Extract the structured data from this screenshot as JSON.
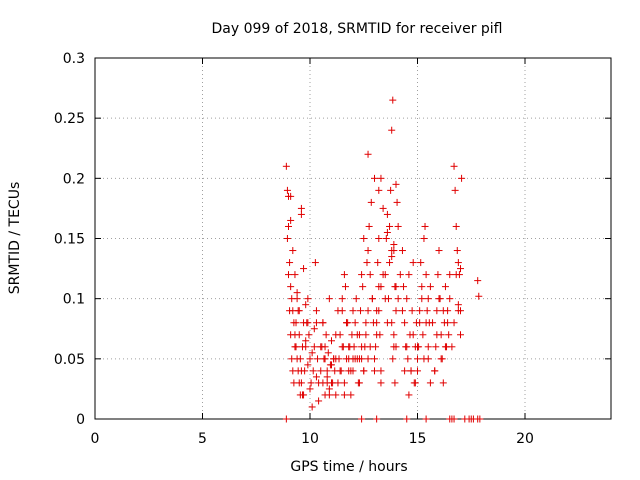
{
  "chart_data": {
    "type": "scatter",
    "title": "Day 099 of 2018, SRMTID for receiver pifl",
    "xlabel": "GPS time / hours",
    "ylabel": "SRMTID / TECUs",
    "xlim": [
      0,
      24
    ],
    "ylim": [
      0,
      0.3
    ],
    "x_ticks": [
      0,
      5,
      10,
      15,
      20
    ],
    "x_tick_labels": [
      "0",
      "5",
      "10",
      "15",
      "20"
    ],
    "y_ticks": [
      0,
      0.05,
      0.1,
      0.15,
      0.2,
      0.25,
      0.3
    ],
    "y_tick_labels": [
      "0",
      "0.05",
      "0.1",
      "0.15",
      "0.2",
      "0.25",
      "0.3"
    ],
    "grid": true,
    "marker": "+",
    "color": "#e00000",
    "series": [
      {
        "x": [
          8.9,
          8.95,
          9.0,
          9.05,
          9.1,
          9.15,
          9.2,
          9.25,
          9.3,
          9.35,
          9.4,
          9.45,
          9.5,
          9.55,
          9.6,
          9.65,
          9.7,
          8.95,
          9.0,
          9.05,
          9.1,
          9.15,
          9.2,
          9.25,
          9.3,
          9.35,
          9.4,
          9.45,
          9.5,
          9.55,
          9.6,
          9.65,
          9.0,
          9.1,
          9.2,
          9.3,
          9.4,
          9.5,
          9.6,
          9.7,
          9.8,
          9.9,
          9.7,
          9.75,
          9.8,
          9.85,
          9.9,
          9.95,
          10.0,
          10.05,
          10.1,
          10.15,
          10.2,
          10.25,
          10.3,
          10.35,
          10.4,
          9.8,
          9.9,
          10.0,
          10.1,
          10.2,
          10.3,
          10.4,
          10.5,
          10.6,
          10.7,
          10.8,
          10.9,
          11.0,
          10.5,
          10.55,
          10.6,
          10.65,
          10.7,
          10.75,
          10.8,
          10.85,
          10.9,
          10.95,
          11.0,
          11.05,
          11.1,
          11.15,
          11.2,
          10.6,
          10.7,
          10.8,
          10.9,
          11.0,
          11.1,
          11.2,
          11.3,
          11.4,
          11.5,
          11.6,
          11.7,
          11.8,
          11.3,
          11.35,
          11.4,
          11.45,
          11.5,
          11.55,
          11.6,
          11.65,
          11.7,
          11.75,
          11.8,
          11.85,
          11.9,
          11.95,
          12.0,
          11.5,
          11.6,
          11.7,
          11.8,
          11.9,
          12.0,
          12.1,
          12.2,
          12.3,
          12.4,
          12.5,
          12.0,
          12.05,
          12.1,
          12.15,
          12.2,
          12.25,
          12.3,
          12.35,
          12.4,
          12.45,
          12.5,
          12.55,
          12.6,
          12.65,
          12.7,
          12.3,
          12.4,
          12.5,
          12.6,
          12.7,
          12.8,
          12.9,
          13.0,
          13.1,
          13.2,
          13.3,
          12.7,
          12.75,
          12.8,
          12.85,
          12.9,
          12.95,
          13.0,
          13.05,
          13.1,
          13.15,
          13.2,
          13.25,
          13.3,
          13.0,
          13.1,
          13.2,
          13.3,
          13.4,
          13.5,
          13.6,
          13.7,
          13.8,
          13.9,
          14.0,
          13.5,
          13.55,
          13.6,
          13.65,
          13.7,
          13.75,
          13.8,
          13.85,
          13.9,
          13.95,
          14.0,
          14.05,
          14.1,
          13.8,
          13.85,
          13.9,
          13.95,
          14.0,
          14.1,
          14.2,
          14.3,
          14.4,
          14.5,
          14.3,
          14.35,
          14.4,
          14.45,
          14.5,
          14.55,
          14.6,
          14.65,
          14.7,
          14.75,
          14.8,
          14.85,
          14.9,
          14.95,
          15.0,
          14.6,
          14.7,
          14.8,
          14.9,
          15.0,
          15.1,
          15.2,
          15.3,
          15.4,
          15.5,
          15.0,
          15.05,
          15.1,
          15.15,
          15.2,
          15.25,
          15.3,
          15.35,
          15.4,
          15.45,
          15.5,
          15.55,
          15.6,
          15.5,
          15.6,
          15.7,
          15.8,
          15.9,
          16.0,
          16.1,
          16.2,
          16.3,
          16.4,
          15.8,
          15.85,
          15.9,
          15.95,
          16.0,
          16.05,
          16.1,
          16.15,
          16.2,
          16.25,
          16.3,
          16.35,
          16.4,
          16.45,
          16.5,
          16.5,
          16.6,
          16.7,
          16.8,
          16.9,
          17.0,
          16.7,
          16.75,
          16.8,
          16.85,
          16.9,
          16.95,
          17.0,
          17.05,
          17.8,
          17.85,
          9.1,
          9.6,
          10.3,
          11.2,
          12.7,
          13.2,
          13.3,
          13.4,
          13.6,
          13.8,
          13.9,
          14.0,
          16.9,
          17.0,
          8.9,
          12.4,
          13.1,
          14.5,
          15.4,
          16.5,
          16.6,
          16.7,
          17.2,
          17.4,
          17.5,
          17.6,
          17.8,
          17.9
        ],
        "y": [
          0.21,
          0.19,
          0.16,
          0.13,
          0.11,
          0.1,
          0.09,
          0.08,
          0.07,
          0.06,
          0.05,
          0.04,
          0.03,
          0.02,
          0.04,
          0.06,
          0.08,
          0.15,
          0.12,
          0.09,
          0.07,
          0.05,
          0.04,
          0.03,
          0.06,
          0.08,
          0.1,
          0.09,
          0.07,
          0.05,
          0.03,
          0.02,
          0.185,
          0.165,
          0.14,
          0.12,
          0.105,
          0.09,
          0.175,
          0.125,
          0.095,
          0.08,
          0.02,
          0.04,
          0.06,
          0.08,
          0.1,
          0.07,
          0.05,
          0.03,
          0.01,
          0.04,
          0.06,
          0.13,
          0.09,
          0.05,
          0.03,
          0.065,
          0.045,
          0.025,
          0.055,
          0.075,
          0.035,
          0.015,
          0.06,
          0.08,
          0.05,
          0.03,
          0.02,
          0.045,
          0.04,
          0.06,
          0.03,
          0.05,
          0.02,
          0.07,
          0.035,
          0.055,
          0.025,
          0.045,
          0.065,
          0.03,
          0.05,
          0.04,
          0.02,
          0.08,
          0.06,
          0.04,
          0.1,
          0.03,
          0.05,
          0.07,
          0.09,
          0.04,
          0.06,
          0.02,
          0.08,
          0.05,
          0.03,
          0.05,
          0.07,
          0.04,
          0.09,
          0.06,
          0.03,
          0.11,
          0.05,
          0.08,
          0.04,
          0.06,
          0.02,
          0.07,
          0.05,
          0.1,
          0.12,
          0.08,
          0.06,
          0.04,
          0.09,
          0.05,
          0.07,
          0.03,
          0.06,
          0.04,
          0.04,
          0.06,
          0.08,
          0.1,
          0.05,
          0.03,
          0.07,
          0.09,
          0.05,
          0.11,
          0.04,
          0.06,
          0.08,
          0.13,
          0.05,
          0.05,
          0.12,
          0.15,
          0.07,
          0.09,
          0.06,
          0.1,
          0.04,
          0.08,
          0.11,
          0.03,
          0.14,
          0.16,
          0.12,
          0.18,
          0.1,
          0.08,
          0.2,
          0.06,
          0.09,
          0.13,
          0.15,
          0.07,
          0.11,
          0.05,
          0.07,
          0.09,
          0.04,
          0.12,
          0.1,
          0.08,
          0.16,
          0.14,
          0.06,
          0.11,
          0.12,
          0.15,
          0.17,
          0.1,
          0.13,
          0.19,
          0.24,
          0.265,
          0.14,
          0.11,
          0.09,
          0.18,
          0.16,
          0.08,
          0.05,
          0.07,
          0.03,
          0.06,
          0.1,
          0.12,
          0.09,
          0.04,
          0.06,
          0.14,
          0.11,
          0.08,
          0.06,
          0.1,
          0.05,
          0.12,
          0.07,
          0.04,
          0.09,
          0.13,
          0.03,
          0.06,
          0.08,
          0.05,
          0.02,
          0.04,
          0.07,
          0.03,
          0.06,
          0.09,
          0.11,
          0.05,
          0.08,
          0.1,
          0.04,
          0.06,
          0.08,
          0.13,
          0.1,
          0.07,
          0.15,
          0.16,
          0.12,
          0.09,
          0.05,
          0.08,
          0.11,
          0.06,
          0.03,
          0.08,
          0.04,
          0.07,
          0.1,
          0.05,
          0.09,
          0.06,
          0.08,
          0.04,
          0.06,
          0.09,
          0.12,
          0.14,
          0.1,
          0.07,
          0.05,
          0.03,
          0.08,
          0.11,
          0.06,
          0.09,
          0.07,
          0.12,
          0.1,
          0.06,
          0.08,
          0.12,
          0.09,
          0.07,
          0.21,
          0.19,
          0.16,
          0.14,
          0.13,
          0.12,
          0.125,
          0.2,
          0.115,
          0.102,
          0.185,
          0.17,
          0.08,
          0.05,
          0.22,
          0.19,
          0.2,
          0.175,
          0.155,
          0.135,
          0.145,
          0.195,
          0.095,
          0.09,
          0.0,
          0.0,
          0.0,
          0.0,
          0.0,
          0.0,
          0.0,
          0.0,
          0.0,
          0.0,
          0.0,
          0.0,
          0.0,
          0.0
        ]
      }
    ]
  }
}
